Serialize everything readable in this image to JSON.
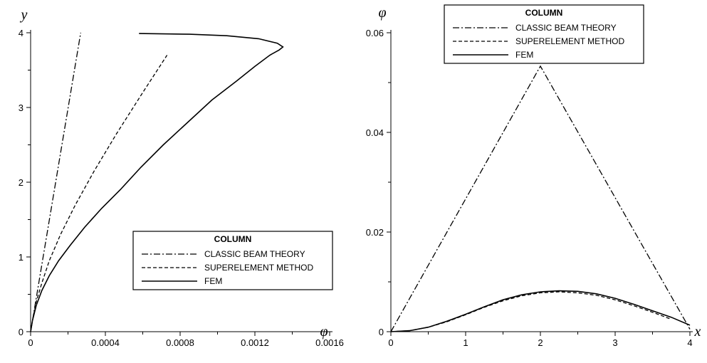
{
  "chart_data": [
    {
      "type": "line",
      "xlabel": "φ",
      "ylabel": "y",
      "xlim": [
        0,
        0.0016
      ],
      "ylim": [
        0,
        4
      ],
      "x_ticks": [
        0,
        0.0004,
        0.0008,
        0.0012,
        0.0016
      ],
      "x_tick_labels": [
        "0",
        "0.0004",
        "0.0008",
        "0.0012",
        "0.0016"
      ],
      "y_ticks": [
        0,
        1,
        2,
        3,
        4
      ],
      "y_tick_labels": [
        "0",
        "1",
        "2",
        "3",
        "4"
      ],
      "grid": false,
      "legend": {
        "title": "COLUMN",
        "position": "lower-right"
      },
      "series": [
        {
          "name": "CLASSIC BEAM THEORY",
          "style": "dash-dot",
          "x": [
            0,
            0.000134,
            0.000268
          ],
          "y": [
            0,
            2.0,
            4.0
          ]
        },
        {
          "name": "SUPERELEMENT METHOD",
          "style": "dashed",
          "x": [
            0,
            1e-05,
            3e-05,
            6e-05,
            0.0001,
            0.00016,
            0.00024,
            0.00034,
            0.00046,
            0.0006,
            0.00073
          ],
          "y": [
            0,
            0.15,
            0.4,
            0.65,
            0.95,
            1.3,
            1.7,
            2.15,
            2.65,
            3.2,
            3.7
          ]
        },
        {
          "name": "FEM",
          "style": "solid",
          "x": [
            0,
            1e-05,
            3e-05,
            6e-05,
            0.0001,
            0.00015,
            0.00021,
            0.00029,
            0.00038,
            0.00048,
            0.00059,
            0.00071,
            0.00084,
            0.00097,
            0.0011,
            0.0012,
            0.00128,
            0.00133,
            0.00135,
            0.00132,
            0.00122,
            0.00105,
            0.00085,
            0.00058
          ],
          "y": [
            0,
            0.15,
            0.35,
            0.55,
            0.75,
            0.95,
            1.15,
            1.4,
            1.65,
            1.9,
            2.2,
            2.5,
            2.8,
            3.1,
            3.35,
            3.55,
            3.7,
            3.77,
            3.81,
            3.86,
            3.92,
            3.96,
            3.98,
            3.99
          ]
        }
      ]
    },
    {
      "type": "line",
      "xlabel": "x",
      "ylabel": "φ",
      "xlim": [
        0,
        4
      ],
      "ylim": [
        0,
        0.06
      ],
      "x_ticks": [
        0,
        1,
        2,
        3,
        4
      ],
      "x_tick_labels": [
        "0",
        "1",
        "2",
        "3",
        "4"
      ],
      "y_ticks": [
        0,
        0.02,
        0.04,
        0.06
      ],
      "y_tick_labels": [
        "0",
        "0.02",
        "0.04",
        "0.06"
      ],
      "grid": false,
      "legend": {
        "title": "COLUMN",
        "position": "top-center"
      },
      "series": [
        {
          "name": "CLASSIC BEAM THEORY",
          "style": "dash-dot",
          "x": [
            0,
            2,
            4
          ],
          "y": [
            0,
            0.0533,
            0.0005
          ]
        },
        {
          "name": "SUPERELEMENT METHOD",
          "style": "dashed",
          "x": [
            0,
            0.25,
            0.5,
            0.75,
            1.0,
            1.25,
            1.5,
            1.75,
            2.0,
            2.25,
            2.5,
            2.75,
            3.0,
            3.25,
            3.5,
            3.75
          ],
          "y": [
            0,
            0.0002,
            0.0009,
            0.002,
            0.0034,
            0.0049,
            0.0062,
            0.0072,
            0.0078,
            0.008,
            0.0078,
            0.0073,
            0.0064,
            0.0052,
            0.0039,
            0.0025
          ]
        },
        {
          "name": "FEM",
          "style": "solid",
          "x": [
            0,
            0.25,
            0.5,
            0.75,
            1.0,
            1.25,
            1.5,
            1.75,
            2.0,
            2.25,
            2.5,
            2.75,
            3.0,
            3.25,
            3.5,
            3.75,
            4.0
          ],
          "y": [
            0,
            0.0002,
            0.0009,
            0.0021,
            0.0035,
            0.005,
            0.0064,
            0.0074,
            0.008,
            0.0082,
            0.0081,
            0.0076,
            0.0067,
            0.0055,
            0.0042,
            0.0029,
            0.0013
          ]
        }
      ]
    }
  ]
}
